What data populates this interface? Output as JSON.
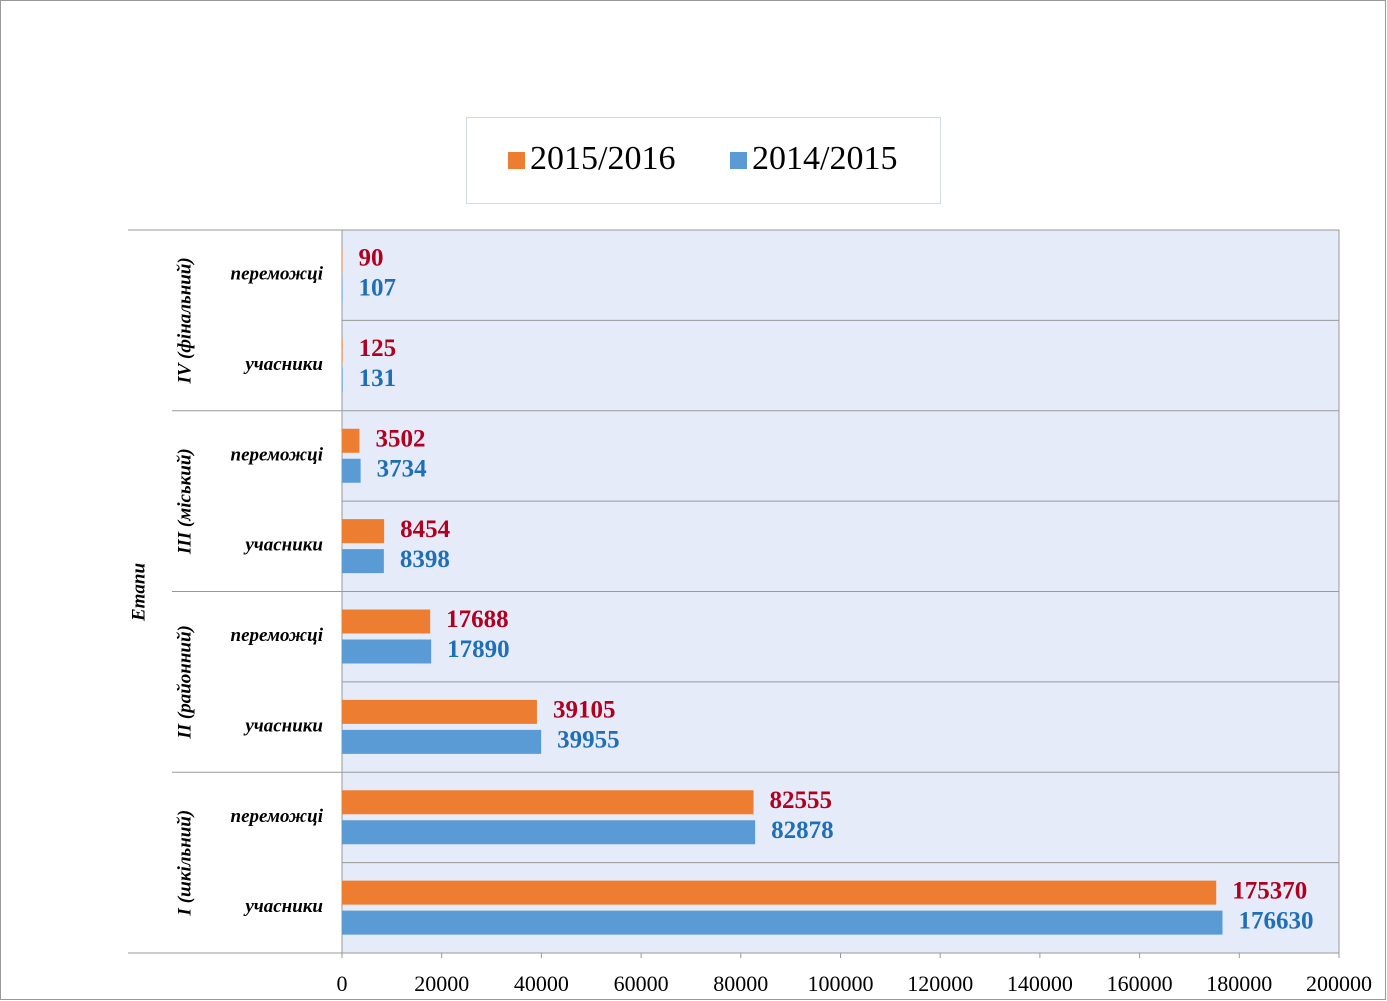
{
  "chart_data": {
    "type": "bar",
    "orientation": "horizontal",
    "axis_label": "Етапи",
    "groups": [
      {
        "label": "IV (фінальний)",
        "categories": [
          "переможці",
          "учасники"
        ]
      },
      {
        "label": "III (міський)",
        "categories": [
          "переможці",
          "учасники"
        ]
      },
      {
        "label": "II (районний)",
        "categories": [
          "переможці",
          "учасники"
        ]
      },
      {
        "label": "I (шкільний)",
        "categories": [
          "переможці",
          "учасники"
        ]
      }
    ],
    "series": [
      {
        "name": "2015/2016",
        "color": "#ed7d31",
        "label_color": "#b00020",
        "values": [
          90,
          125,
          3502,
          8454,
          17688,
          39105,
          82555,
          175370
        ]
      },
      {
        "name": "2014/2015",
        "color": "#5b9bd5",
        "label_color": "#1f6fb8",
        "values": [
          107,
          131,
          3734,
          8398,
          17890,
          39955,
          82878,
          176630
        ]
      }
    ],
    "xlim": [
      0,
      200000
    ],
    "xticks": [
      0,
      20000,
      40000,
      60000,
      80000,
      100000,
      120000,
      140000,
      160000,
      180000,
      200000
    ],
    "legend": "top"
  }
}
